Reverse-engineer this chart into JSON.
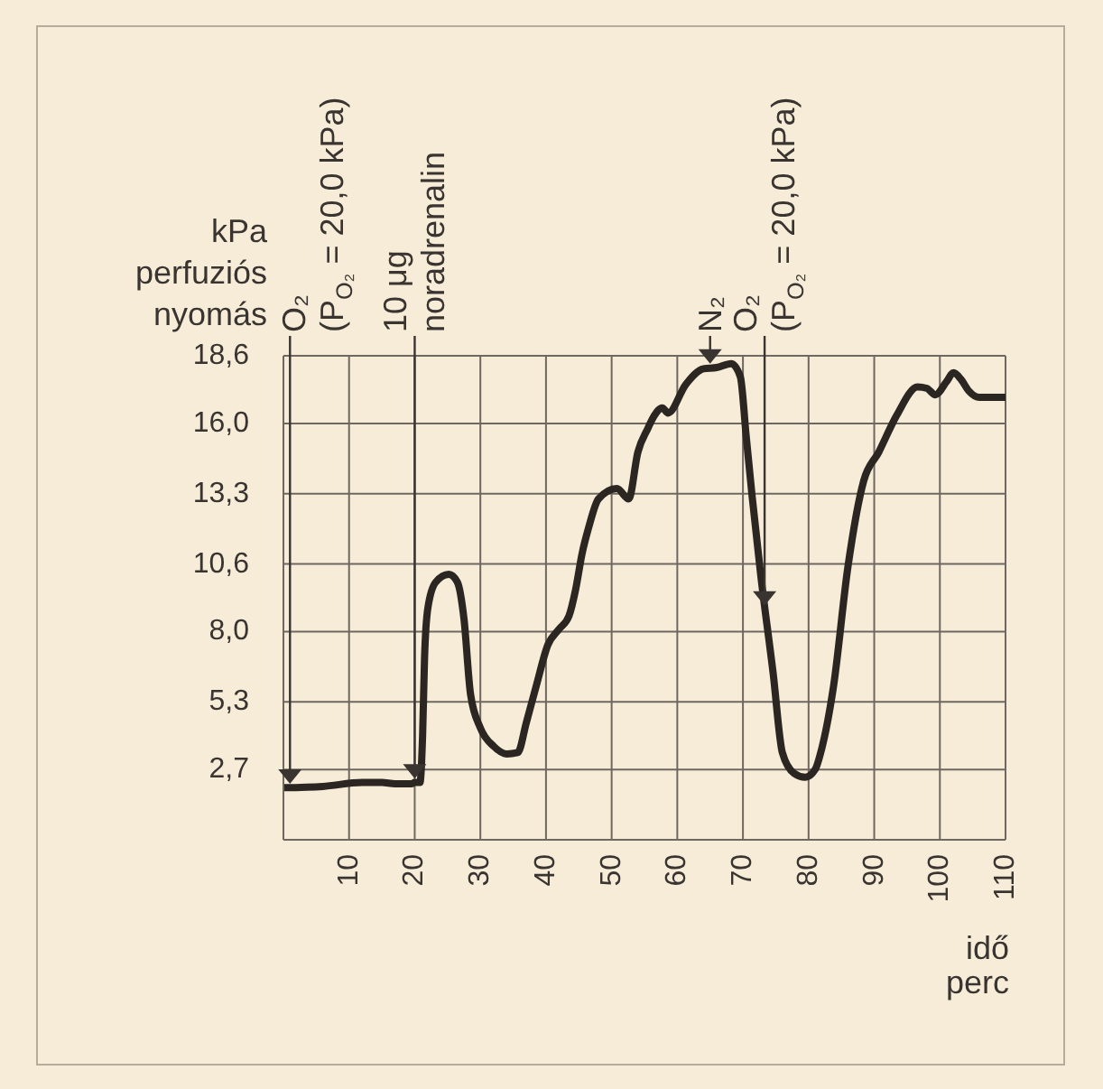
{
  "chart_data": {
    "type": "line",
    "xlabel": "idő\nperc",
    "ylabel": "kPa\nperfuziós\nnyomás",
    "x": [
      0,
      6,
      12,
      15,
      17,
      19.5,
      20,
      20.8,
      21.2,
      21.5,
      22,
      23.2,
      25.2,
      26.5,
      27.5,
      28.5,
      30,
      32,
      34,
      35.7,
      37,
      38.5,
      40.3,
      42,
      43.5,
      44.5,
      45.5,
      46.5,
      48,
      50.8,
      52.6,
      54,
      55.5,
      56.5,
      57.7,
      58.6,
      61.3,
      64,
      66,
      68.2,
      69.6,
      70.5,
      71.4,
      72.7,
      74.6,
      76,
      77.8,
      79.5,
      81,
      82,
      83.8,
      86,
      88.4,
      90.7,
      93.4,
      96.6,
      98,
      99.3,
      101,
      102.1,
      103.2,
      104.4,
      106,
      110
    ],
    "series": [
      {
        "color": "#2b2622",
        "values": [
          2.0,
          2.05,
          2.2,
          2.2,
          2.15,
          2.15,
          2.2,
          2.2,
          4.0,
          7.0,
          8.9,
          9.9,
          10.2,
          9.9,
          8.5,
          5.6,
          4.3,
          3.6,
          3.3,
          3.35,
          4.5,
          5.9,
          7.5,
          8.1,
          8.6,
          9.6,
          11.0,
          12.0,
          13.1,
          13.5,
          13.1,
          14.9,
          15.8,
          16.3,
          16.6,
          16.4,
          17.5,
          18.1,
          18.15,
          18.3,
          17.8,
          15.5,
          13.2,
          10.2,
          6.4,
          3.35,
          2.55,
          2.4,
          2.7,
          3.5,
          5.9,
          10.5,
          13.8,
          14.9,
          16.3,
          17.4,
          17.35,
          17.1,
          17.6,
          17.95,
          17.7,
          17.25,
          17.0,
          17.0
        ]
      }
    ],
    "xlim": [
      0,
      110
    ],
    "xticks": [
      10,
      20,
      30,
      40,
      50,
      60,
      70,
      80,
      90,
      100,
      110
    ],
    "ylim": [
      0,
      18.6
    ],
    "yticks": [
      {
        "value": 2.7,
        "label": "2,7"
      },
      {
        "value": 5.3,
        "label": "5,3"
      },
      {
        "value": 8.0,
        "label": "8,0"
      },
      {
        "value": 10.6,
        "label": "10,6"
      },
      {
        "value": 13.3,
        "label": "13,3"
      },
      {
        "value": 16.0,
        "label": "16,0"
      },
      {
        "value": 18.6,
        "label": "18,6"
      }
    ],
    "grid": true,
    "annotations": [
      {
        "text": "O₂\n(P$_{O₂}$ = 20,0 kPa)",
        "x": 1,
        "y": 2.15
      },
      {
        "text": "10 μg\nnoradrenalin",
        "x": 20,
        "y": 2.35
      },
      {
        "text": "N₂",
        "x": 65,
        "y": 18.3
      },
      {
        "text": "O₂\n(P$_{O₂}$ = 20,0 kPa)",
        "x": 73.3,
        "y": 9.0
      }
    ]
  }
}
